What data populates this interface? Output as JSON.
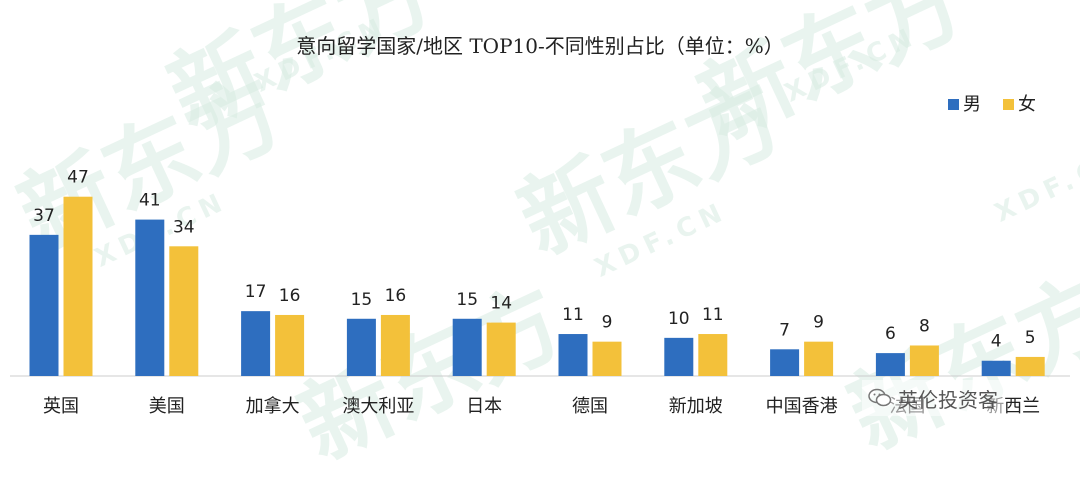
{
  "watermark": {
    "logo_text": "新东方",
    "url_text": "XDF.CN"
  },
  "credit": {
    "text": "英伦投资客",
    "icon": "wechat-icon"
  },
  "colors": {
    "male": "#2e6ebf",
    "female": "#f3c13a",
    "axis": "#cccccc",
    "watermark": "#d8ece2"
  },
  "chart_data": {
    "type": "bar",
    "title": "意向留学国家/地区 TOP10-不同性别占比（单位：%）",
    "categories": [
      "英国",
      "美国",
      "加拿大",
      "澳大利亚",
      "日本",
      "德国",
      "新加坡",
      "中国香港",
      "法国",
      "新西兰"
    ],
    "series": [
      {
        "name": "男",
        "values": [
          37,
          41,
          17,
          15,
          15,
          11,
          10,
          7,
          6,
          4
        ]
      },
      {
        "name": "女",
        "values": [
          47,
          34,
          16,
          16,
          14,
          9,
          11,
          9,
          8,
          5
        ]
      }
    ],
    "ylim": [
      0,
      54
    ],
    "grid": false,
    "legend": "top-right"
  }
}
